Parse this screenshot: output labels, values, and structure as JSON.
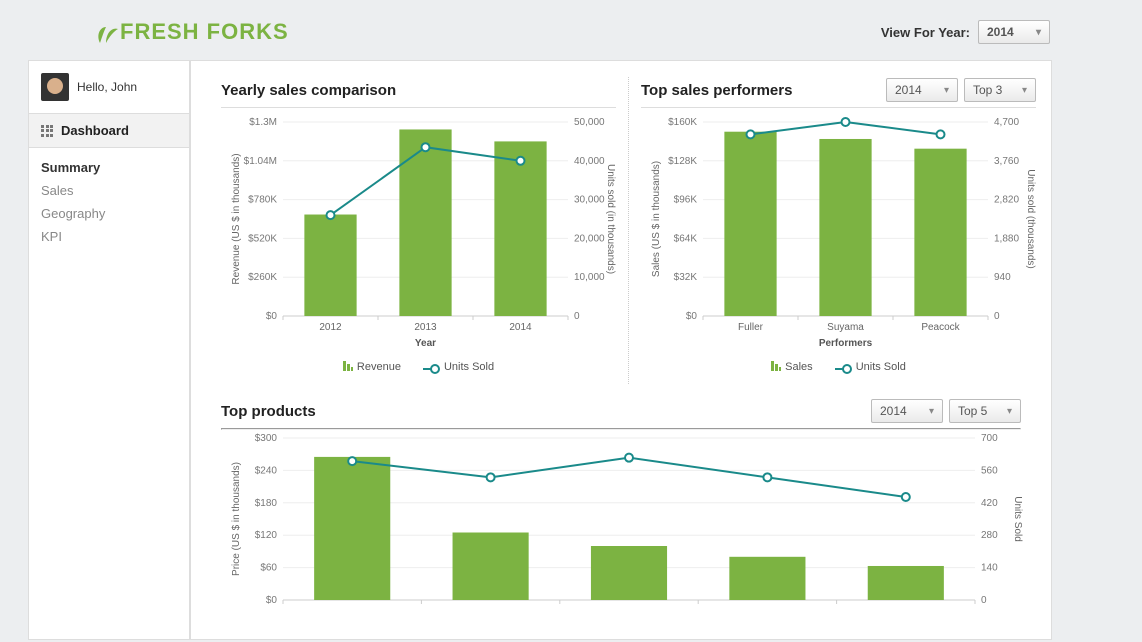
{
  "brand": {
    "name": "FRESH FORKS",
    "accent": "#7cb342"
  },
  "header": {
    "view_label": "View For Year:",
    "year_value": "2014"
  },
  "sidebar": {
    "greeting": "Hello, John",
    "dashboard_label": "Dashboard",
    "subnav": [
      "Summary",
      "Sales",
      "Geography",
      "KPI"
    ],
    "active_subnav": 0
  },
  "charts": {
    "yearly": {
      "type": "bar_line_dual_axis",
      "title": "Yearly sales comparison",
      "x_label": "Year",
      "left_axis": {
        "label": "Revenue (US $ in thousands)",
        "ticks": [
          "$0",
          "$260K",
          "$520K",
          "$780K",
          "$1.04M",
          "$1.3M"
        ],
        "max": 1300000
      },
      "right_axis": {
        "label": "Units sold (in thousands)",
        "ticks": [
          "0",
          "10,000",
          "20,000",
          "30,000",
          "40,000",
          "50,000"
        ],
        "max": 50000
      },
      "categories": [
        "2012",
        "2013",
        "2014"
      ],
      "bars": [
        680000,
        1250000,
        1170000
      ],
      "line": [
        26000,
        43500,
        40000
      ],
      "bar_color": "#7cb342",
      "line_color": "#1a8a8a",
      "background": "#ffffff",
      "grid_color": "#eeeeee",
      "legend": {
        "bar": "Revenue",
        "line": "Units Sold"
      }
    },
    "performers": {
      "type": "bar_line_dual_axis",
      "title": "Top sales performers",
      "controls": {
        "year": "2014",
        "top": "Top 3"
      },
      "x_label": "Performers",
      "left_axis": {
        "label": "Sales (US $ in thousands)",
        "ticks": [
          "$0",
          "$32K",
          "$64K",
          "$96K",
          "$128K",
          "$160K"
        ],
        "max": 160000
      },
      "right_axis": {
        "label": "Units sold (thousands)",
        "ticks": [
          "0",
          "940",
          "1,880",
          "2,820",
          "3,760",
          "4,700"
        ],
        "max": 4700
      },
      "categories": [
        "Fuller",
        "Suyama",
        "Peacock"
      ],
      "bars": [
        152000,
        146000,
        138000
      ],
      "line": [
        4400,
        4700,
        4400
      ],
      "bar_color": "#7cb342",
      "line_color": "#1a8a8a",
      "legend": {
        "bar": "Sales",
        "line": "Units Sold"
      }
    },
    "products": {
      "type": "bar_line_dual_axis",
      "title": "Top products",
      "controls": {
        "year": "2014",
        "top": "Top 5"
      },
      "left_axis": {
        "label": "Price (US $ in thousands)",
        "ticks": [
          "$0",
          "$60",
          "$120",
          "$180",
          "$240",
          "$300"
        ],
        "max": 300
      },
      "right_axis": {
        "label": "Units Sold",
        "ticks": [
          "0",
          "140",
          "280",
          "420",
          "560",
          "700"
        ],
        "max": 700
      },
      "categories": [
        "",
        "",
        "",
        "",
        ""
      ],
      "bars": [
        265,
        125,
        100,
        80,
        63
      ],
      "line": [
        600,
        530,
        615,
        530,
        445
      ],
      "bar_color": "#7cb342",
      "line_color": "#1a8a8a"
    }
  }
}
